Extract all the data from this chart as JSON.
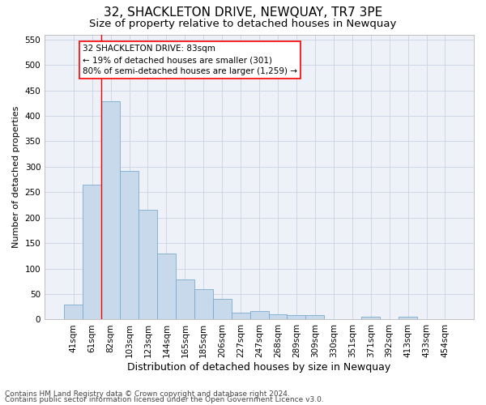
{
  "title": "32, SHACKLETON DRIVE, NEWQUAY, TR7 3PE",
  "subtitle": "Size of property relative to detached houses in Newquay",
  "xlabel": "Distribution of detached houses by size in Newquay",
  "ylabel": "Number of detached properties",
  "bar_labels": [
    "41sqm",
    "61sqm",
    "82sqm",
    "103sqm",
    "123sqm",
    "144sqm",
    "165sqm",
    "185sqm",
    "206sqm",
    "227sqm",
    "247sqm",
    "268sqm",
    "289sqm",
    "309sqm",
    "330sqm",
    "351sqm",
    "371sqm",
    "392sqm",
    "413sqm",
    "433sqm",
    "454sqm"
  ],
  "bar_values": [
    30,
    265,
    428,
    292,
    215,
    130,
    78,
    60,
    40,
    14,
    17,
    10,
    9,
    8,
    1,
    1,
    5,
    1,
    6,
    1,
    1
  ],
  "bar_color": "#c9d9ec",
  "bar_edge_color": "#7aabcf",
  "grid_color": "#c8d4e3",
  "background_color": "#eef2f8",
  "annotation_line1": "32 SHACKLETON DRIVE: 83sqm",
  "annotation_line2": "← 19% of detached houses are smaller (301)",
  "annotation_line3": "80% of semi-detached houses are larger (1,259) →",
  "vline_x_index": 1.5,
  "ylim": [
    0,
    560
  ],
  "yticks": [
    0,
    50,
    100,
    150,
    200,
    250,
    300,
    350,
    400,
    450,
    500,
    550
  ],
  "footer_line1": "Contains HM Land Registry data © Crown copyright and database right 2024.",
  "footer_line2": "Contains public sector information licensed under the Open Government Licence v3.0.",
  "title_fontsize": 11,
  "subtitle_fontsize": 9.5,
  "xlabel_fontsize": 9,
  "ylabel_fontsize": 8,
  "tick_fontsize": 7.5,
  "annotation_fontsize": 7.5,
  "footer_fontsize": 6.5
}
